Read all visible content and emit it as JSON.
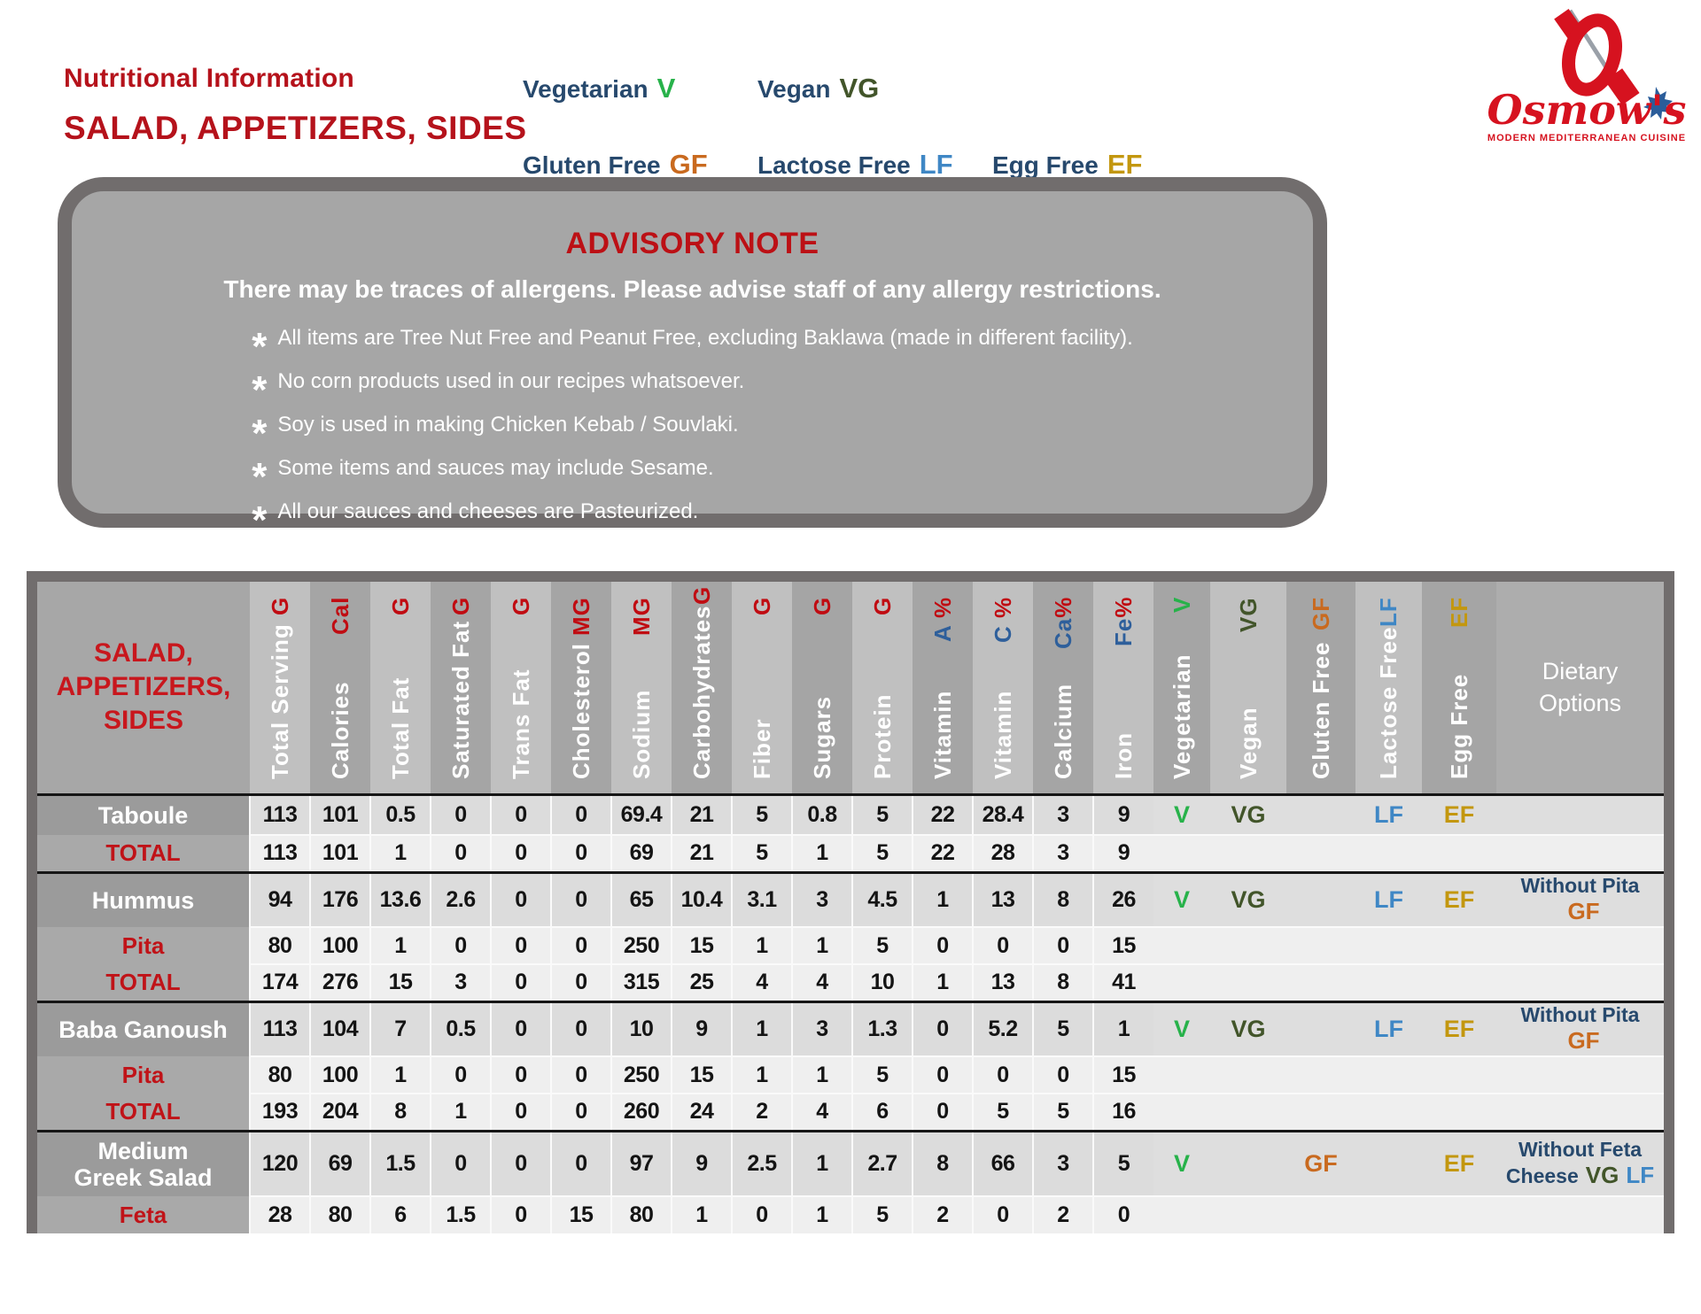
{
  "header": {
    "title1": "Nutritional Information",
    "title2": "SALAD, APPETIZERS, SIDES",
    "legend": [
      {
        "label": "Vegetarian",
        "code": "V",
        "code_class": "code-v"
      },
      {
        "label": "Vegan",
        "code": "VG",
        "code_class": "code-vg"
      },
      {
        "label": "Gluten Free",
        "code": "GF",
        "code_class": "code-gf"
      },
      {
        "label": "Lactose Free",
        "code": "LF",
        "code_class": "code-lf"
      },
      {
        "label": "Egg Free",
        "code": "EF",
        "code_class": "code-ef"
      }
    ],
    "logo": {
      "name": "Osmow's",
      "tagline": "MODERN MEDITERRANEAN CUISINE"
    }
  },
  "advisory": {
    "title": "ADVISORY NOTE",
    "subtitle": "There may be traces of allergens. Please advise staff of any allergy restrictions.",
    "bullets": [
      "All items are Tree Nut Free and Peanut Free, excluding Baklawa (made in different facility).",
      "No corn products used in our recipes whatsoever.",
      "Soy is used in making Chicken Kebab / Souvlaki.",
      "Some items and sauces may include Sesame.",
      "All our sauces and cheeses are Pasteurized."
    ]
  },
  "table": {
    "corner_title": [
      "SALAD,",
      "APPETIZERS,",
      "SIDES"
    ],
    "dietary_header": [
      "Dietary",
      "Options"
    ],
    "columns": [
      {
        "label": "Total Serving",
        "unit": "G",
        "unit_type": "red"
      },
      {
        "label": "Calories",
        "unit": "Cal",
        "unit_type": "red"
      },
      {
        "label": "Total Fat",
        "unit": "G",
        "unit_type": "red"
      },
      {
        "label": "Saturated Fat",
        "unit": "G",
        "unit_type": "red"
      },
      {
        "label": "Trans Fat",
        "unit": "G",
        "unit_type": "red"
      },
      {
        "label": "Cholesterol",
        "unit": "MG",
        "unit_type": "red"
      },
      {
        "label": "Sodium",
        "unit": "MG",
        "unit_type": "red"
      },
      {
        "label": "Carbohydrates",
        "unit": "G",
        "unit_type": "red"
      },
      {
        "label": "Fiber",
        "unit": "G",
        "unit_type": "red"
      },
      {
        "label": "Sugars",
        "unit": "G",
        "unit_type": "red"
      },
      {
        "label": "Protein",
        "unit": "G",
        "unit_type": "red"
      },
      {
        "label": "Vitamin",
        "unit": "A %",
        "unit_type": "mixed"
      },
      {
        "label": "Vitamin",
        "unit": "C %",
        "unit_type": "mixed"
      },
      {
        "label": "Calcium",
        "unit": "Ca%",
        "unit_type": "mixed"
      },
      {
        "label": "Iron",
        "unit": "Fe%",
        "unit_type": "mixed"
      },
      {
        "label": "Vegetarian",
        "unit": "V",
        "unit_type": "code-v"
      },
      {
        "label": "Vegan",
        "unit": "VG",
        "unit_type": "code-vg"
      },
      {
        "label": "Gluten Free",
        "unit": "GF",
        "unit_type": "code-gf"
      },
      {
        "label": "Lactose Free",
        "unit": "LF",
        "unit_type": "code-lf"
      },
      {
        "label": "Egg Free",
        "unit": "EF",
        "unit_type": "code-ef"
      }
    ],
    "flag_order": [
      "V",
      "VG",
      "GF",
      "LF",
      "EF"
    ],
    "rows": [
      {
        "name": "Taboule",
        "type": "main",
        "group_start": true,
        "values": [
          "113",
          "101",
          "0.5",
          "0",
          "0",
          "0",
          "69.4",
          "21",
          "5",
          "0.8",
          "5",
          "22",
          "28.4",
          "3",
          "9"
        ],
        "flags": [
          "V",
          "VG",
          "LF",
          "EF"
        ],
        "dietary": null
      },
      {
        "name": "TOTAL",
        "type": "total",
        "values": [
          "113",
          "101",
          "1",
          "0",
          "0",
          "0",
          "69",
          "21",
          "5",
          "1",
          "5",
          "22",
          "28",
          "3",
          "9"
        ],
        "flags": [],
        "dietary": null
      },
      {
        "name": "Hummus",
        "type": "main",
        "group_start": true,
        "values": [
          "94",
          "176",
          "13.6",
          "2.6",
          "0",
          "0",
          "65",
          "10.4",
          "3.1",
          "3",
          "4.5",
          "1",
          "13",
          "8",
          "26"
        ],
        "flags": [
          "V",
          "VG",
          "LF",
          "EF"
        ],
        "dietary": {
          "line1": "Without Pita",
          "line2": "",
          "codes": [
            "GF"
          ]
        }
      },
      {
        "name": "Pita",
        "type": "sub",
        "values": [
          "80",
          "100",
          "1",
          "0",
          "0",
          "0",
          "250",
          "15",
          "1",
          "1",
          "5",
          "0",
          "0",
          "0",
          "15"
        ],
        "flags": [],
        "dietary": null
      },
      {
        "name": "TOTAL",
        "type": "total",
        "values": [
          "174",
          "276",
          "15",
          "3",
          "0",
          "0",
          "315",
          "25",
          "4",
          "4",
          "10",
          "1",
          "13",
          "8",
          "41"
        ],
        "flags": [],
        "dietary": null
      },
      {
        "name": "Baba Ganoush",
        "type": "main",
        "group_start": true,
        "values": [
          "113",
          "104",
          "7",
          "0.5",
          "0",
          "0",
          "10",
          "9",
          "1",
          "3",
          "1.3",
          "0",
          "5.2",
          "5",
          "1"
        ],
        "flags": [
          "V",
          "VG",
          "LF",
          "EF"
        ],
        "dietary": {
          "line1": "Without Pita",
          "line2": "",
          "codes": [
            "GF"
          ]
        }
      },
      {
        "name": "Pita",
        "type": "sub",
        "values": [
          "80",
          "100",
          "1",
          "0",
          "0",
          "0",
          "250",
          "15",
          "1",
          "1",
          "5",
          "0",
          "0",
          "0",
          "15"
        ],
        "flags": [],
        "dietary": null
      },
      {
        "name": "TOTAL",
        "type": "total",
        "values": [
          "193",
          "204",
          "8",
          "1",
          "0",
          "0",
          "260",
          "24",
          "2",
          "4",
          "6",
          "0",
          "5",
          "5",
          "16"
        ],
        "flags": [],
        "dietary": null
      },
      {
        "name": "Medium Greek Salad",
        "type": "main",
        "group_start": true,
        "name_lines": [
          "Medium",
          "Greek Salad"
        ],
        "values": [
          "120",
          "69",
          "1.5",
          "0",
          "0",
          "0",
          "97",
          "9",
          "2.5",
          "1",
          "2.7",
          "8",
          "66",
          "3",
          "5"
        ],
        "flags": [
          "V",
          "GF",
          "EF"
        ],
        "dietary": {
          "line1": "Without Feta",
          "line2": "Cheese",
          "codes": [
            "VG",
            "LF"
          ]
        }
      },
      {
        "name": "Feta",
        "type": "sub",
        "values": [
          "28",
          "80",
          "6",
          "1.5",
          "0",
          "15",
          "80",
          "1",
          "0",
          "1",
          "5",
          "2",
          "0",
          "2",
          "0"
        ],
        "flags": [],
        "dietary": null
      }
    ]
  },
  "colors": {
    "brand_red": "#b5121b",
    "navy": "#27496d",
    "vegetarian_green": "#27b24a",
    "vegan_green": "#42552a",
    "gluten_orange": "#c96a1f",
    "lactose_blue": "#3f87c5",
    "egg_gold": "#c3970f",
    "advisory_gray": "#a6a6a6",
    "border_gray": "#716d6d"
  }
}
